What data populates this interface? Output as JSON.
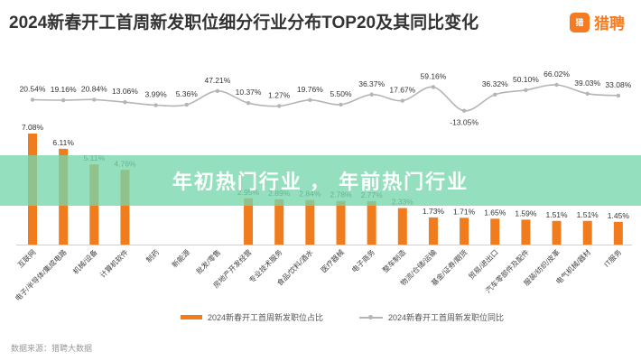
{
  "title": "2024新春开工首周新发职位细分行业分布TOP20及其同比变化",
  "logo": {
    "mark": "猎聘",
    "text": "猎聘"
  },
  "banner": "年初热门行业 ， 年前热门行业",
  "source": "数据来源：猎聘大数据",
  "colors": {
    "bar": "#f07c1e",
    "line": "#b5b5b5",
    "banner": "#76d6ac"
  },
  "chart_data": {
    "type": "bar",
    "categories": [
      "互联网",
      "电子/半导体/集成电路",
      "机械/设备",
      "计算机软件",
      "制药",
      "新能源",
      "批发/零售",
      "房地产开发经营",
      "专业技术服务",
      "食品/饮料/酒水",
      "医疗器械",
      "电子商务",
      "整车制造",
      "物流/仓储/运输",
      "基金/证券/期货",
      "贸易/进出口",
      "汽车零部件及配件",
      "服装/纺织/皮革",
      "电气机械/器材",
      "IT服务"
    ],
    "series": [
      {
        "name": "2024新春开工首周新发职位占比",
        "type": "bar",
        "values": [
          7.08,
          6.11,
          5.11,
          4.76,
          null,
          null,
          null,
          2.95,
          2.89,
          2.84,
          2.78,
          2.77,
          2.33,
          1.73,
          1.71,
          1.65,
          1.59,
          1.51,
          1.51,
          1.45
        ],
        "labels": [
          "7.08%",
          "6.11%",
          "5.11%",
          "4.76%",
          "",
          "",
          "",
          "2.95%",
          "2.89%",
          "2.84%",
          "2.78%",
          "2.77%",
          "2.33%",
          "1.73%",
          "1.71%",
          "1.65%",
          "1.59%",
          "1.51%",
          "1.51%",
          "1.45%"
        ]
      },
      {
        "name": "2024新春开工首周新发职位同比",
        "type": "line",
        "values": [
          20.54,
          19.16,
          20.84,
          13.06,
          3.99,
          5.36,
          47.21,
          10.37,
          1.27,
          19.76,
          5.5,
          36.37,
          17.67,
          59.16,
          -13.05,
          36.32,
          50.1,
          66.02,
          39.03,
          33.08
        ],
        "labels": [
          "20.54%",
          "19.16%",
          "20.84%",
          "13.06%",
          "3.99%",
          "5.36%",
          "47.21%",
          "10.37%",
          "1.27%",
          "19.76%",
          "5.50%",
          "36.37%",
          "17.67%",
          "59.16%",
          "-13.05%",
          "36.32%",
          "50.10%",
          "66.02%",
          "39.03%",
          "33.08%"
        ]
      }
    ],
    "bar_ylim": [
      0,
      8
    ],
    "line_ylim": [
      -20,
      70
    ],
    "grid": false,
    "legend_position": "bottom"
  }
}
